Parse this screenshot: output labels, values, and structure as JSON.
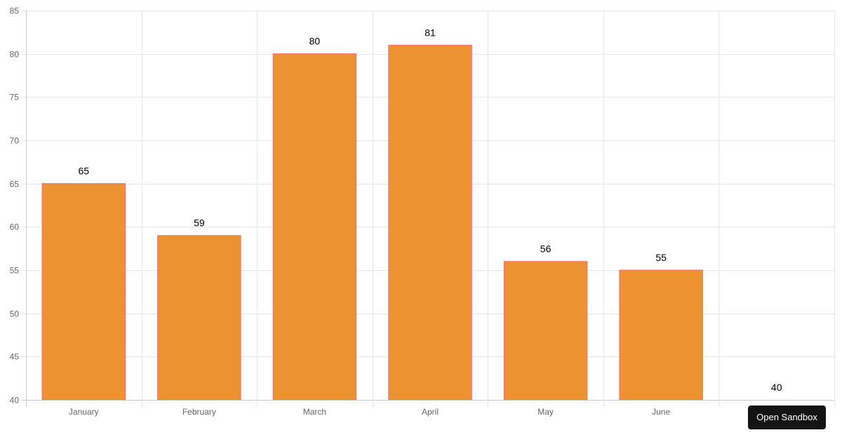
{
  "chart_data": {
    "type": "bar",
    "categories": [
      "January",
      "February",
      "March",
      "April",
      "May",
      "June",
      ""
    ],
    "values": [
      65,
      59,
      80,
      81,
      56,
      55,
      40
    ],
    "ylim": [
      40,
      85
    ],
    "yticks": [
      40,
      45,
      50,
      55,
      60,
      65,
      70,
      75,
      80,
      85
    ],
    "grid": true,
    "bar_fill_color": "#ed9230",
    "bar_border_color": "#f26b7d",
    "grid_color": "#e6e6e6",
    "axis_color": "#cccccc",
    "tick_label_color": "#666666",
    "data_label_color": "#000000"
  },
  "toolbar": {
    "open_sandbox_label": "Open Sandbox"
  }
}
